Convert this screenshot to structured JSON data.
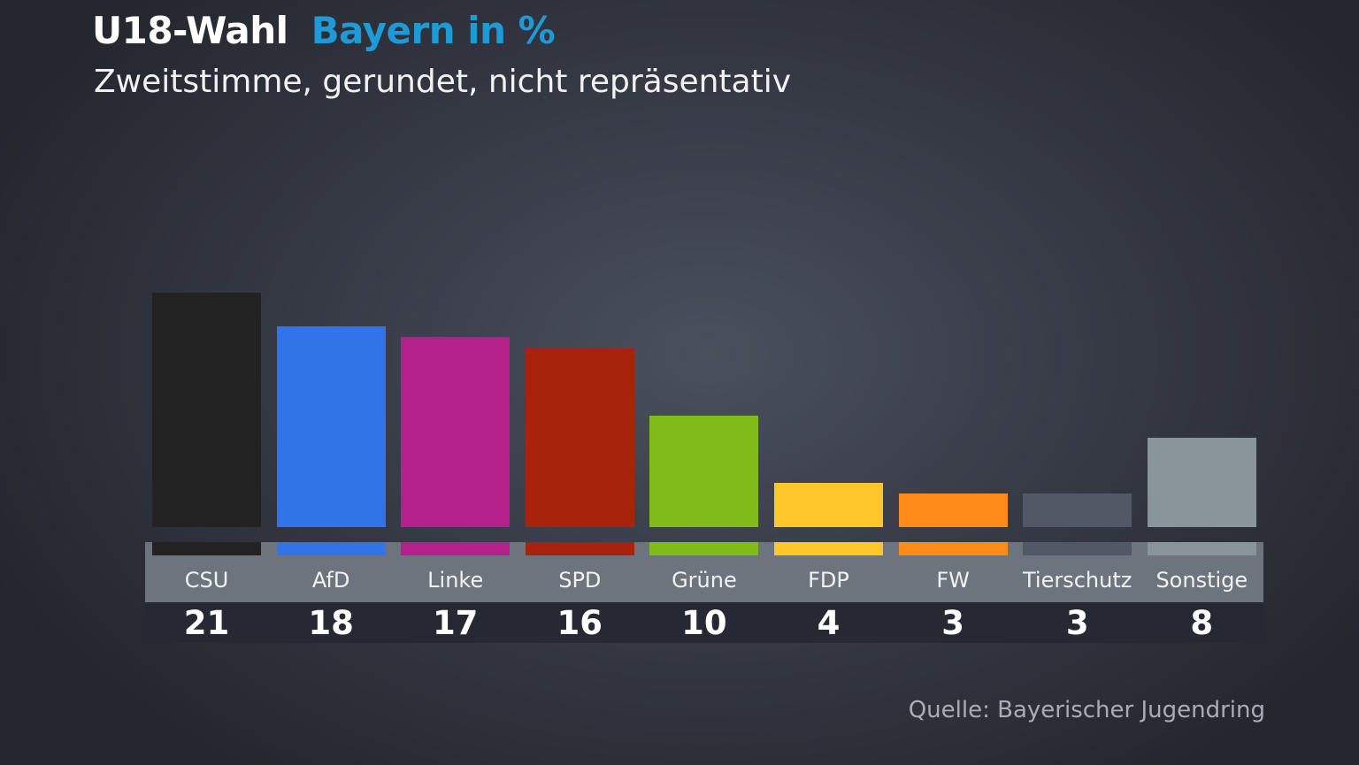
{
  "header": {
    "title": "U18-Wahl",
    "title_accent": "Bayern in %",
    "accent_color": "#1e9bd7",
    "subtitle": "Zweitstimme, gerundet, nicht repräsentativ"
  },
  "footer": {
    "source": "Quelle: Bayerischer Jugendring"
  },
  "chart_data": {
    "type": "bar",
    "title": "U18-Wahl Bayern in %",
    "subtitle": "Zweitstimme, gerundet, nicht repräsentativ",
    "unit": "%",
    "categories": [
      "CSU",
      "AfD",
      "Linke",
      "SPD",
      "Grüne",
      "FDP",
      "FW",
      "Tierschutz",
      "Sonstige"
    ],
    "values": [
      21,
      18,
      17,
      16,
      10,
      4,
      3,
      3,
      8
    ],
    "colors": [
      "#222222",
      "#3174e8",
      "#b5218a",
      "#a8230b",
      "#80bd1a",
      "#ffc72c",
      "#ff8c1a",
      "#535867",
      "#8a959b"
    ],
    "grid": false,
    "legend": "none"
  }
}
